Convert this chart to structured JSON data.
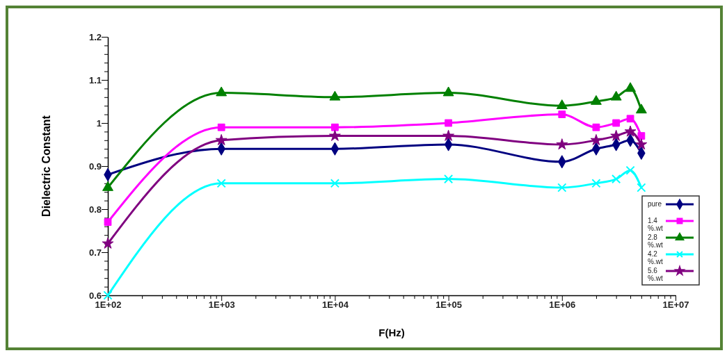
{
  "chart_data": {
    "type": "line",
    "xlabel": "F(Hz)",
    "ylabel": "Dielectric Constant",
    "log": "x",
    "legend": "bottom right",
    "grid": false,
    "x": [
      100,
      1000,
      10000,
      100000,
      1000000,
      2000000,
      3000000,
      4000000,
      5000000
    ],
    "xlim": [
      100,
      10000000
    ],
    "xticks": [
      {
        "value": 100,
        "label": "1E+02"
      },
      {
        "value": 200,
        "label": null
      },
      {
        "value": 300,
        "label": null
      },
      {
        "value": 400,
        "label": null
      },
      {
        "value": 500,
        "label": null
      },
      {
        "value": 600,
        "label": null
      },
      {
        "value": 700,
        "label": null
      },
      {
        "value": 800,
        "label": null
      },
      {
        "value": 900,
        "label": null
      },
      {
        "value": 1000,
        "label": "1E+03"
      },
      {
        "value": 2000,
        "label": null
      },
      {
        "value": 3000,
        "label": null
      },
      {
        "value": 4000,
        "label": null
      },
      {
        "value": 5000,
        "label": null
      },
      {
        "value": 6000,
        "label": null
      },
      {
        "value": 7000,
        "label": null
      },
      {
        "value": 8000,
        "label": null
      },
      {
        "value": 9000,
        "label": null
      },
      {
        "value": 10000,
        "label": "1E+04"
      },
      {
        "value": 20000,
        "label": null
      },
      {
        "value": 30000,
        "label": null
      },
      {
        "value": 40000,
        "label": null
      },
      {
        "value": 50000,
        "label": null
      },
      {
        "value": 60000,
        "label": null
      },
      {
        "value": 70000,
        "label": null
      },
      {
        "value": 80000,
        "label": null
      },
      {
        "value": 90000,
        "label": null
      },
      {
        "value": 100000,
        "label": "1E+05"
      },
      {
        "value": 200000,
        "label": null
      },
      {
        "value": 300000,
        "label": null
      },
      {
        "value": 400000,
        "label": null
      },
      {
        "value": 500000,
        "label": null
      },
      {
        "value": 600000,
        "label": null
      },
      {
        "value": 700000,
        "label": null
      },
      {
        "value": 800000,
        "label": null
      },
      {
        "value": 900000,
        "label": null
      },
      {
        "value": 1000000,
        "label": "1E+06"
      },
      {
        "value": 2000000,
        "label": null
      },
      {
        "value": 3000000,
        "label": null
      },
      {
        "value": 4000000,
        "label": null
      },
      {
        "value": 5000000,
        "label": null
      },
      {
        "value": 6000000,
        "label": null
      },
      {
        "value": 7000000,
        "label": null
      },
      {
        "value": 8000000,
        "label": null
      },
      {
        "value": 9000000,
        "label": null
      },
      {
        "value": 10000000,
        "label": "1E+07"
      }
    ],
    "ylim": [
      0.6,
      1.2
    ],
    "yticks": [
      0.6,
      {
        "value": 0.62,
        "label": null
      },
      {
        "value": 0.64,
        "label": null
      },
      {
        "value": 0.66,
        "label": null
      },
      {
        "value": 0.68,
        "label": null
      },
      0.7,
      {
        "value": 0.72,
        "label": null
      },
      {
        "value": 0.74,
        "label": null
      },
      {
        "value": 0.76,
        "label": null
      },
      {
        "value": 0.78,
        "label": null
      },
      0.8,
      {
        "value": 0.82,
        "label": null
      },
      {
        "value": 0.84,
        "label": null
      },
      {
        "value": 0.86,
        "label": null
      },
      {
        "value": 0.88,
        "label": null
      },
      0.9,
      {
        "value": 0.92,
        "label": null
      },
      {
        "value": 0.94,
        "label": null
      },
      {
        "value": 0.96,
        "label": null
      },
      {
        "value": 0.98,
        "label": null
      },
      1,
      {
        "value": 1.02,
        "label": null
      },
      {
        "value": 1.04,
        "label": null
      },
      {
        "value": 1.06,
        "label": null
      },
      {
        "value": 1.08,
        "label": null
      },
      1.1,
      {
        "value": 1.12,
        "label": null
      },
      {
        "value": 1.14,
        "label": null
      },
      {
        "value": 1.16,
        "label": null
      },
      {
        "value": 1.18,
        "label": null
      },
      1.2
    ],
    "series": [
      {
        "name": "pure",
        "color": "#000080",
        "marker": "diamond",
        "values": [
          0.88,
          0.94,
          0.94,
          0.95,
          0.91,
          0.94,
          0.95,
          0.96,
          0.93
        ]
      },
      {
        "name": "1.4 %.wt",
        "color": "#ff00ff",
        "marker": "square",
        "values": [
          0.77,
          0.99,
          0.99,
          1.0,
          1.02,
          0.99,
          1.0,
          1.01,
          0.97
        ]
      },
      {
        "name": "2.8 %.wt",
        "color": "#008000",
        "marker": "triangle",
        "values": [
          0.85,
          1.07,
          1.06,
          1.07,
          1.04,
          1.05,
          1.06,
          1.08,
          1.03
        ]
      },
      {
        "name": "4.2 %.wt",
        "color": "#00ffff",
        "marker": "cross",
        "values": [
          0.6,
          0.86,
          0.86,
          0.87,
          0.85,
          0.86,
          0.87,
          0.89,
          0.85
        ]
      },
      {
        "name": "5.6 %.wt",
        "color": "#800080",
        "marker": "star",
        "values": [
          0.72,
          0.96,
          0.97,
          0.97,
          0.95,
          0.96,
          0.97,
          0.98,
          0.95
        ]
      }
    ]
  }
}
